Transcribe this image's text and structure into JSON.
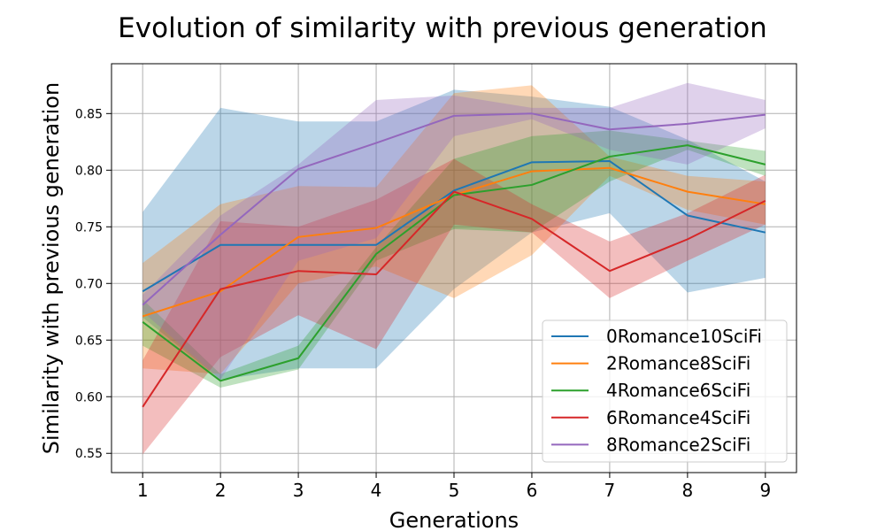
{
  "chart_data": {
    "type": "line",
    "title": "Evolution of similarity with previous generation",
    "xlabel": "Generations",
    "ylabel": "Similarity with previous generation",
    "x": [
      1,
      2,
      3,
      4,
      5,
      6,
      7,
      8,
      9
    ],
    "xlim": [
      0.6,
      9.4
    ],
    "ylim": [
      0.533,
      0.894
    ],
    "yticks": [
      0.55,
      0.6,
      0.65,
      0.7,
      0.75,
      0.8,
      0.85
    ],
    "xticks": [
      1,
      2,
      3,
      4,
      5,
      6,
      7,
      8,
      9
    ],
    "grid": true,
    "legend_position": "lower-right",
    "series": [
      {
        "name": "0Romance10SciFi",
        "color": "#1f77b4",
        "values": [
          0.693,
          0.734,
          0.734,
          0.734,
          0.782,
          0.807,
          0.808,
          0.76,
          0.745
        ],
        "lower": [
          0.67,
          0.615,
          0.625,
          0.625,
          0.695,
          0.745,
          0.762,
          0.692,
          0.705
        ],
        "upper": [
          0.763,
          0.855,
          0.843,
          0.843,
          0.871,
          0.865,
          0.856,
          0.827,
          0.79
        ]
      },
      {
        "name": "2Romance8SciFi",
        "color": "#ff7f0e",
        "values": [
          0.671,
          0.693,
          0.741,
          0.749,
          0.778,
          0.799,
          0.802,
          0.781,
          0.77
        ],
        "lower": [
          0.625,
          0.62,
          0.7,
          0.715,
          0.687,
          0.725,
          0.795,
          0.765,
          0.752
        ],
        "upper": [
          0.718,
          0.77,
          0.786,
          0.785,
          0.868,
          0.875,
          0.812,
          0.795,
          0.79
        ]
      },
      {
        "name": "4Romance6SciFi",
        "color": "#2ca02c",
        "values": [
          0.666,
          0.614,
          0.634,
          0.726,
          0.778,
          0.787,
          0.812,
          0.822,
          0.805
        ],
        "lower": [
          0.645,
          0.608,
          0.624,
          0.72,
          0.748,
          0.745,
          0.79,
          0.818,
          0.795
        ],
        "upper": [
          0.686,
          0.62,
          0.645,
          0.732,
          0.81,
          0.83,
          0.835,
          0.826,
          0.817
        ]
      },
      {
        "name": "6Romance4SciFi",
        "color": "#d62728",
        "values": [
          0.591,
          0.695,
          0.711,
          0.708,
          0.781,
          0.757,
          0.711,
          0.739,
          0.773
        ],
        "lower": [
          0.549,
          0.635,
          0.672,
          0.642,
          0.752,
          0.745,
          0.687,
          0.72,
          0.752
        ],
        "upper": [
          0.632,
          0.755,
          0.75,
          0.774,
          0.81,
          0.77,
          0.737,
          0.762,
          0.796
        ]
      },
      {
        "name": "8Romance2SciFi",
        "color": "#9467bd",
        "values": [
          0.681,
          0.743,
          0.801,
          0.824,
          0.848,
          0.85,
          0.836,
          0.841,
          0.849
        ],
        "lower": [
          0.675,
          0.615,
          0.72,
          0.74,
          0.83,
          0.845,
          0.818,
          0.805,
          0.837
        ],
        "upper": [
          0.69,
          0.76,
          0.805,
          0.862,
          0.866,
          0.855,
          0.855,
          0.877,
          0.862
        ]
      }
    ]
  }
}
